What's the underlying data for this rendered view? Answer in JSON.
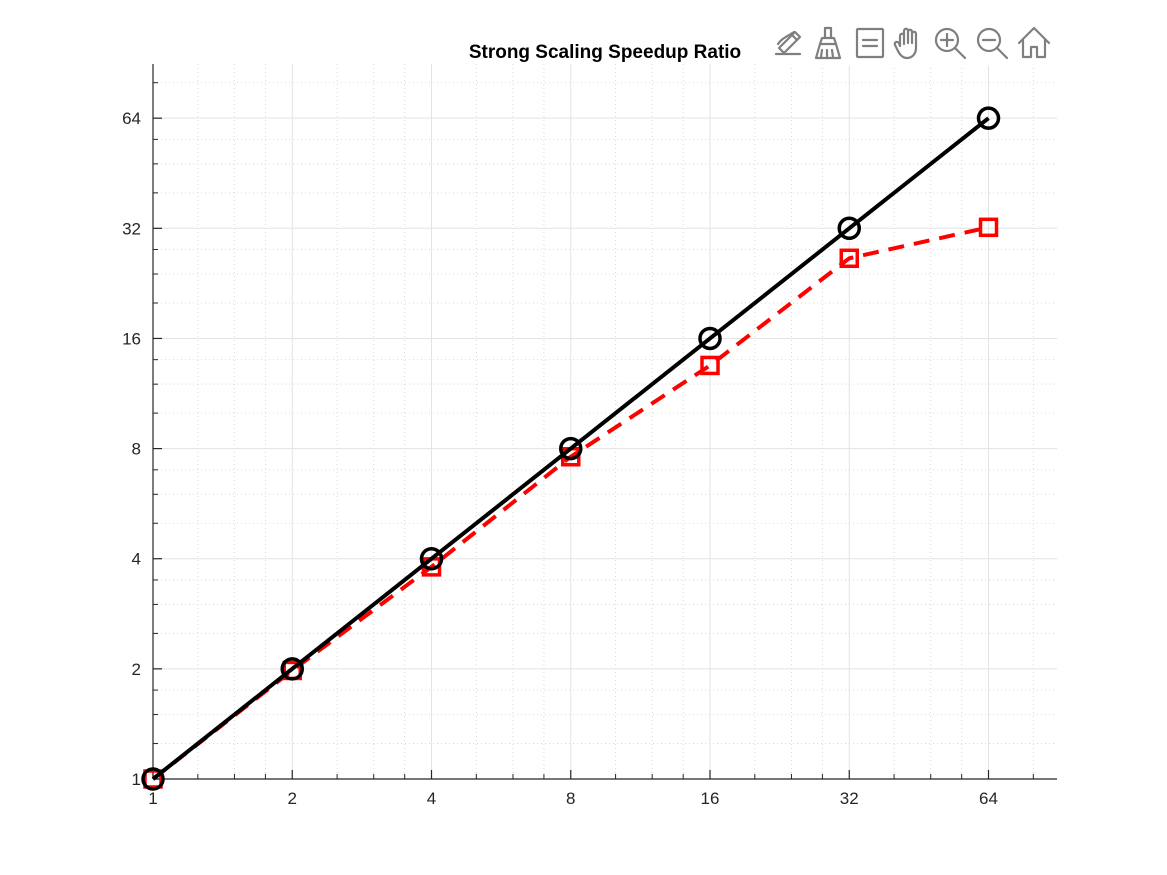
{
  "toolbar": {
    "buttons": [
      {
        "name": "edit-plot-icon"
      },
      {
        "name": "brush-icon"
      },
      {
        "name": "data-tips-icon"
      },
      {
        "name": "pan-hand-icon"
      },
      {
        "name": "zoom-in-icon"
      },
      {
        "name": "zoom-out-icon"
      },
      {
        "name": "home-icon"
      }
    ]
  },
  "chart_data": {
    "type": "line",
    "title": "Strong Scaling Speedup Ratio",
    "xlabel": "",
    "ylabel": "",
    "xscale": "log2",
    "yscale": "log2",
    "xlim": [
      1,
      90
    ],
    "ylim": [
      1,
      90
    ],
    "xticks": [
      1,
      2,
      4,
      8,
      16,
      32,
      64
    ],
    "yticks": [
      1,
      2,
      4,
      8,
      16,
      32,
      64
    ],
    "xtick_labels": [
      "1",
      "2",
      "4",
      "8",
      "16",
      "32",
      "64"
    ],
    "ytick_labels": [
      "1",
      "2",
      "4",
      "8",
      "16",
      "32",
      "64"
    ],
    "grid": true,
    "minor_grid": true,
    "legend": "none",
    "series": [
      {
        "color": "#ff0000",
        "linestyle": "dashed",
        "marker": "square",
        "x": [
          1,
          2,
          4,
          8,
          16,
          32,
          64
        ],
        "y": [
          1,
          1.98,
          3.8,
          7.6,
          13.5,
          26.5,
          32.2
        ]
      },
      {
        "color": "#000000",
        "linestyle": "solid",
        "marker": "circle",
        "x": [
          1,
          2,
          4,
          8,
          16,
          32,
          64
        ],
        "y": [
          1,
          2,
          4,
          8,
          16,
          32,
          64
        ]
      }
    ]
  }
}
